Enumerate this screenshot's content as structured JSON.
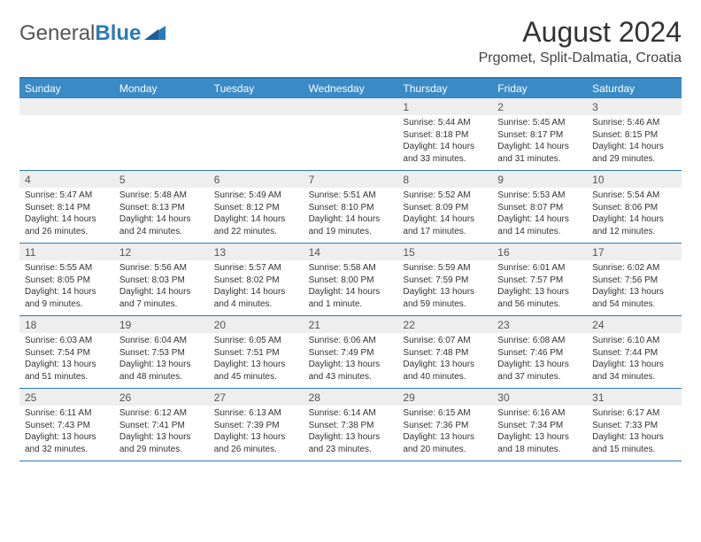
{
  "logo": {
    "word1": "General",
    "word2": "Blue"
  },
  "title": "August 2024",
  "location": "Prgomet, Split-Dalmatia, Croatia",
  "colors": {
    "brand_blue": "#3a8ac6",
    "accent_blue": "#2a7ab9",
    "daynum_bg": "#eeeeee",
    "text": "#333333",
    "bg": "#ffffff"
  },
  "weekdays": [
    "Sunday",
    "Monday",
    "Tuesday",
    "Wednesday",
    "Thursday",
    "Friday",
    "Saturday"
  ],
  "weeks": [
    [
      {
        "n": "",
        "sr": "",
        "ss": "",
        "dl": ""
      },
      {
        "n": "",
        "sr": "",
        "ss": "",
        "dl": ""
      },
      {
        "n": "",
        "sr": "",
        "ss": "",
        "dl": ""
      },
      {
        "n": "",
        "sr": "",
        "ss": "",
        "dl": ""
      },
      {
        "n": "1",
        "sr": "Sunrise: 5:44 AM",
        "ss": "Sunset: 8:18 PM",
        "dl": "Daylight: 14 hours and 33 minutes."
      },
      {
        "n": "2",
        "sr": "Sunrise: 5:45 AM",
        "ss": "Sunset: 8:17 PM",
        "dl": "Daylight: 14 hours and 31 minutes."
      },
      {
        "n": "3",
        "sr": "Sunrise: 5:46 AM",
        "ss": "Sunset: 8:15 PM",
        "dl": "Daylight: 14 hours and 29 minutes."
      }
    ],
    [
      {
        "n": "4",
        "sr": "Sunrise: 5:47 AM",
        "ss": "Sunset: 8:14 PM",
        "dl": "Daylight: 14 hours and 26 minutes."
      },
      {
        "n": "5",
        "sr": "Sunrise: 5:48 AM",
        "ss": "Sunset: 8:13 PM",
        "dl": "Daylight: 14 hours and 24 minutes."
      },
      {
        "n": "6",
        "sr": "Sunrise: 5:49 AM",
        "ss": "Sunset: 8:12 PM",
        "dl": "Daylight: 14 hours and 22 minutes."
      },
      {
        "n": "7",
        "sr": "Sunrise: 5:51 AM",
        "ss": "Sunset: 8:10 PM",
        "dl": "Daylight: 14 hours and 19 minutes."
      },
      {
        "n": "8",
        "sr": "Sunrise: 5:52 AM",
        "ss": "Sunset: 8:09 PM",
        "dl": "Daylight: 14 hours and 17 minutes."
      },
      {
        "n": "9",
        "sr": "Sunrise: 5:53 AM",
        "ss": "Sunset: 8:07 PM",
        "dl": "Daylight: 14 hours and 14 minutes."
      },
      {
        "n": "10",
        "sr": "Sunrise: 5:54 AM",
        "ss": "Sunset: 8:06 PM",
        "dl": "Daylight: 14 hours and 12 minutes."
      }
    ],
    [
      {
        "n": "11",
        "sr": "Sunrise: 5:55 AM",
        "ss": "Sunset: 8:05 PM",
        "dl": "Daylight: 14 hours and 9 minutes."
      },
      {
        "n": "12",
        "sr": "Sunrise: 5:56 AM",
        "ss": "Sunset: 8:03 PM",
        "dl": "Daylight: 14 hours and 7 minutes."
      },
      {
        "n": "13",
        "sr": "Sunrise: 5:57 AM",
        "ss": "Sunset: 8:02 PM",
        "dl": "Daylight: 14 hours and 4 minutes."
      },
      {
        "n": "14",
        "sr": "Sunrise: 5:58 AM",
        "ss": "Sunset: 8:00 PM",
        "dl": "Daylight: 14 hours and 1 minute."
      },
      {
        "n": "15",
        "sr": "Sunrise: 5:59 AM",
        "ss": "Sunset: 7:59 PM",
        "dl": "Daylight: 13 hours and 59 minutes."
      },
      {
        "n": "16",
        "sr": "Sunrise: 6:01 AM",
        "ss": "Sunset: 7:57 PM",
        "dl": "Daylight: 13 hours and 56 minutes."
      },
      {
        "n": "17",
        "sr": "Sunrise: 6:02 AM",
        "ss": "Sunset: 7:56 PM",
        "dl": "Daylight: 13 hours and 54 minutes."
      }
    ],
    [
      {
        "n": "18",
        "sr": "Sunrise: 6:03 AM",
        "ss": "Sunset: 7:54 PM",
        "dl": "Daylight: 13 hours and 51 minutes."
      },
      {
        "n": "19",
        "sr": "Sunrise: 6:04 AM",
        "ss": "Sunset: 7:53 PM",
        "dl": "Daylight: 13 hours and 48 minutes."
      },
      {
        "n": "20",
        "sr": "Sunrise: 6:05 AM",
        "ss": "Sunset: 7:51 PM",
        "dl": "Daylight: 13 hours and 45 minutes."
      },
      {
        "n": "21",
        "sr": "Sunrise: 6:06 AM",
        "ss": "Sunset: 7:49 PM",
        "dl": "Daylight: 13 hours and 43 minutes."
      },
      {
        "n": "22",
        "sr": "Sunrise: 6:07 AM",
        "ss": "Sunset: 7:48 PM",
        "dl": "Daylight: 13 hours and 40 minutes."
      },
      {
        "n": "23",
        "sr": "Sunrise: 6:08 AM",
        "ss": "Sunset: 7:46 PM",
        "dl": "Daylight: 13 hours and 37 minutes."
      },
      {
        "n": "24",
        "sr": "Sunrise: 6:10 AM",
        "ss": "Sunset: 7:44 PM",
        "dl": "Daylight: 13 hours and 34 minutes."
      }
    ],
    [
      {
        "n": "25",
        "sr": "Sunrise: 6:11 AM",
        "ss": "Sunset: 7:43 PM",
        "dl": "Daylight: 13 hours and 32 minutes."
      },
      {
        "n": "26",
        "sr": "Sunrise: 6:12 AM",
        "ss": "Sunset: 7:41 PM",
        "dl": "Daylight: 13 hours and 29 minutes."
      },
      {
        "n": "27",
        "sr": "Sunrise: 6:13 AM",
        "ss": "Sunset: 7:39 PM",
        "dl": "Daylight: 13 hours and 26 minutes."
      },
      {
        "n": "28",
        "sr": "Sunrise: 6:14 AM",
        "ss": "Sunset: 7:38 PM",
        "dl": "Daylight: 13 hours and 23 minutes."
      },
      {
        "n": "29",
        "sr": "Sunrise: 6:15 AM",
        "ss": "Sunset: 7:36 PM",
        "dl": "Daylight: 13 hours and 20 minutes."
      },
      {
        "n": "30",
        "sr": "Sunrise: 6:16 AM",
        "ss": "Sunset: 7:34 PM",
        "dl": "Daylight: 13 hours and 18 minutes."
      },
      {
        "n": "31",
        "sr": "Sunrise: 6:17 AM",
        "ss": "Sunset: 7:33 PM",
        "dl": "Daylight: 13 hours and 15 minutes."
      }
    ]
  ]
}
